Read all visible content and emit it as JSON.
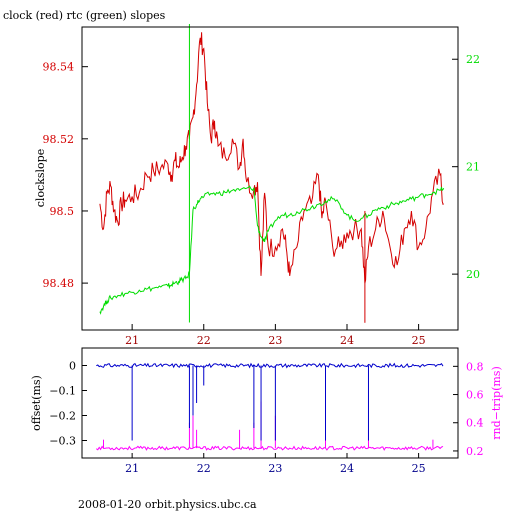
{
  "title": "clock (red) rtc (green) slopes",
  "footer": "2008-01-20  orbit.physics.ubc.ca",
  "colors": {
    "clock": "#d40000",
    "rtc": "#00dd00",
    "offset": "#0000cc",
    "rndtrip": "#ff00ff",
    "axes": "#000000"
  },
  "chart_data": [
    {
      "type": "line",
      "title": "clock (red) rtc (green) slopes",
      "ylabel": "clockslope",
      "x_ticks": [
        21,
        22,
        23,
        24,
        25
      ],
      "xlim": [
        20.3,
        25.55
      ],
      "ylim_left": [
        98.467,
        98.551
      ],
      "ylim_right": [
        19.48,
        22.3
      ],
      "y_ticks_left": [
        "98.48",
        "98.5",
        "98.52",
        "98.54"
      ],
      "y_ticks_right": [
        "20",
        "21",
        "22"
      ],
      "grid": false,
      "series": [
        {
          "name": "clock",
          "axis": "left",
          "x": [
            20.55,
            20.6,
            20.65,
            20.7,
            20.75,
            20.8,
            20.85,
            20.9,
            21.0,
            21.1,
            21.2,
            21.3,
            21.4,
            21.5,
            21.55,
            21.6,
            21.65,
            21.7,
            21.75,
            21.8,
            21.85,
            21.9,
            21.95,
            22.0,
            22.05,
            22.1,
            22.15,
            22.2,
            22.3,
            22.4,
            22.5,
            22.55,
            22.6,
            22.7,
            22.75,
            22.8,
            22.85,
            22.9,
            23.0,
            23.1,
            23.15,
            23.2,
            23.3,
            23.4,
            23.5,
            23.6,
            23.65,
            23.7,
            23.8,
            23.9,
            24.0,
            24.1,
            24.2,
            24.25,
            24.3,
            24.4,
            24.5,
            24.6,
            24.7,
            24.8,
            24.9,
            25.0,
            25.1,
            25.2,
            25.3,
            25.35
          ],
          "y": [
            98.502,
            98.495,
            98.505,
            98.507,
            98.5,
            98.497,
            98.502,
            98.503,
            98.504,
            98.505,
            98.51,
            98.511,
            98.512,
            98.513,
            98.51,
            98.514,
            98.512,
            98.515,
            98.518,
            98.52,
            98.526,
            98.535,
            98.548,
            98.545,
            98.53,
            98.52,
            98.525,
            98.518,
            98.515,
            98.52,
            98.512,
            98.52,
            98.508,
            98.506,
            98.508,
            98.482,
            98.505,
            98.49,
            98.49,
            98.495,
            98.49,
            98.482,
            98.49,
            98.5,
            98.502,
            98.51,
            98.498,
            98.503,
            98.49,
            98.49,
            98.494,
            98.495,
            98.495,
            98.48,
            98.49,
            98.495,
            98.5,
            98.49,
            98.485,
            98.495,
            98.5,
            98.49,
            98.495,
            98.505,
            98.51,
            98.502
          ]
        },
        {
          "name": "rtc",
          "axis": "right",
          "x": [
            20.55,
            20.6,
            20.65,
            20.7,
            20.8,
            20.9,
            21.0,
            21.1,
            21.2,
            21.3,
            21.4,
            21.5,
            21.55,
            21.6,
            21.65,
            21.7,
            21.75,
            21.8,
            21.85,
            21.9,
            21.95,
            22.0,
            22.1,
            22.2,
            22.3,
            22.4,
            22.5,
            22.6,
            22.7,
            22.75,
            22.8,
            22.85,
            22.9,
            23.0,
            23.1,
            23.2,
            23.3,
            23.4,
            23.5,
            23.6,
            23.7,
            23.8,
            23.9,
            24.0,
            24.1,
            24.2,
            24.3,
            24.4,
            24.5,
            24.6,
            24.7,
            24.8,
            24.9,
            25.0,
            25.1,
            25.2,
            25.3,
            25.35
          ],
          "y": [
            19.65,
            19.7,
            19.75,
            19.78,
            19.8,
            19.82,
            19.83,
            19.85,
            19.86,
            19.87,
            19.88,
            19.89,
            19.9,
            19.92,
            19.93,
            19.95,
            19.96,
            20.0,
            20.6,
            20.65,
            20.7,
            20.72,
            20.75,
            20.75,
            20.76,
            20.78,
            20.78,
            20.8,
            20.8,
            20.45,
            20.35,
            20.3,
            20.4,
            20.5,
            20.55,
            20.55,
            20.58,
            20.6,
            20.62,
            20.65,
            20.68,
            20.7,
            20.65,
            20.55,
            20.5,
            20.52,
            20.55,
            20.6,
            20.62,
            20.64,
            20.66,
            20.68,
            20.7,
            20.72,
            20.74,
            20.76,
            20.78,
            20.8
          ]
        }
      ]
    },
    {
      "type": "line",
      "xlabel": "",
      "ylabel_left": "offset(ms)",
      "ylabel_right": "rnd−trip(ms)",
      "x_ticks": [
        21,
        22,
        23,
        24,
        25
      ],
      "xlim": [
        20.3,
        25.55
      ],
      "ylim_left": [
        -0.37,
        0.07
      ],
      "ylim_right": [
        0.15,
        0.93
      ],
      "y_ticks_left": [
        "0",
        "−0.1",
        "−0.2",
        "−0.3"
      ],
      "y_ticks_right": [
        "0.2",
        "0.4",
        "0.6",
        "0.8"
      ],
      "grid": false,
      "series": [
        {
          "name": "offset",
          "axis": "left",
          "baseline": 0.0,
          "dips": [
            [
              21.0,
              -0.3
            ],
            [
              21.8,
              -0.25
            ],
            [
              21.85,
              -0.2
            ],
            [
              21.9,
              -0.15
            ],
            [
              22.0,
              -0.08
            ],
            [
              22.7,
              -0.25
            ],
            [
              22.8,
              -0.3
            ],
            [
              23.0,
              -0.3
            ],
            [
              23.7,
              -0.3
            ],
            [
              24.3,
              -0.3
            ]
          ]
        },
        {
          "name": "rnd-trip",
          "axis": "right",
          "baseline": 0.22,
          "spikes": [
            [
              20.6,
              0.28
            ],
            [
              21.8,
              0.4
            ],
            [
              21.85,
              0.45
            ],
            [
              21.9,
              0.35
            ],
            [
              22.5,
              0.35
            ],
            [
              22.7,
              0.4
            ],
            [
              22.8,
              0.55
            ],
            [
              23.0,
              0.45
            ],
            [
              23.7,
              0.3
            ],
            [
              24.3,
              0.35
            ],
            [
              25.2,
              0.28
            ]
          ]
        }
      ]
    }
  ]
}
